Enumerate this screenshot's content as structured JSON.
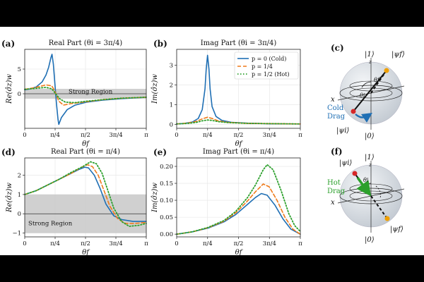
{
  "colors": {
    "cold": "#1f6fb4",
    "quarter": "#ef7a1a",
    "hot": "#2ca02c",
    "region": "#c8c8c8",
    "sphere": "#d6dce2"
  },
  "x_tick_labels": [
    "0",
    "π/4",
    "π/2",
    "3π/4",
    "π"
  ],
  "x_axis_label": "θf",
  "legend": {
    "entries": [
      "p = 0 (Cold)",
      "p = 1/4",
      "p = 1/2 (Hot)"
    ]
  },
  "chart_data": [
    {
      "panel": "(a)",
      "type": "line",
      "title": "Real Part (θi = 3π/4)",
      "ylabel": "Re(σ̂z)w",
      "yticks": [
        "0",
        "5"
      ],
      "ylim": [
        -7,
        9
      ],
      "shaded_region": {
        "label": "Strong Region",
        "y_range": [
          -1,
          1
        ]
      },
      "series": [
        {
          "name": "p = 0 (Cold)",
          "peak": {
            "x": "0.705",
            "y": 8
          },
          "trough": {
            "x": "0.88",
            "y": -6.2
          },
          "x": [
            0,
            0.15,
            0.3,
            0.45,
            0.55,
            0.62,
            0.68,
            0.705,
            0.74,
            0.78,
            0.82,
            0.86,
            0.88,
            0.95,
            1.1,
            1.3,
            1.6,
            2.0,
            2.5,
            3.14
          ],
          "y": [
            0.8,
            1.0,
            1.4,
            2.4,
            3.8,
            5.4,
            7.4,
            8.0,
            6.0,
            2.0,
            -2.0,
            -5.2,
            -6.2,
            -4.8,
            -3.2,
            -2.3,
            -1.7,
            -1.3,
            -1.0,
            -0.7
          ]
        },
        {
          "name": "p = 1/4",
          "x": [
            0,
            0.3,
            0.55,
            0.7,
            0.78,
            0.88,
            1.0,
            1.2,
            1.6,
            2.0,
            2.5,
            3.14
          ],
          "y": [
            0.9,
            1.3,
            1.8,
            1.6,
            0.5,
            -1.5,
            -2.3,
            -2.0,
            -1.6,
            -1.2,
            -0.9,
            -0.7
          ]
        },
        {
          "name": "p = 1/2 (Hot)",
          "x": [
            0,
            0.3,
            0.55,
            0.7,
            0.8,
            0.9,
            1.05,
            1.3,
            1.6,
            2.0,
            2.5,
            3.14
          ],
          "y": [
            0.9,
            1.1,
            1.3,
            1.0,
            0.0,
            -1.0,
            -1.7,
            -1.8,
            -1.5,
            -1.2,
            -0.9,
            -0.7
          ]
        }
      ]
    },
    {
      "panel": "(b)",
      "type": "line",
      "title": "Imag Part (θi = 3π/4)",
      "ylabel": "Im(σ̂z)w",
      "yticks": [
        "0",
        "1",
        "2",
        "3"
      ],
      "ylim": [
        -0.2,
        3.8
      ],
      "series": [
        {
          "name": "p = 0 (Cold)",
          "x": [
            0,
            0.2,
            0.4,
            0.55,
            0.65,
            0.72,
            0.75,
            0.785,
            0.82,
            0.85,
            0.9,
            1.0,
            1.15,
            1.4,
            1.8,
            2.4,
            3.14
          ],
          "y": [
            0.02,
            0.05,
            0.12,
            0.3,
            0.75,
            1.8,
            2.8,
            3.5,
            2.8,
            1.8,
            0.9,
            0.4,
            0.2,
            0.1,
            0.06,
            0.03,
            0.02
          ]
        },
        {
          "name": "p = 1/4",
          "x": [
            0,
            0.3,
            0.5,
            0.65,
            0.785,
            0.9,
            1.05,
            1.3,
            1.8,
            3.14
          ],
          "y": [
            0.02,
            0.07,
            0.15,
            0.28,
            0.36,
            0.3,
            0.18,
            0.1,
            0.05,
            0.02
          ]
        },
        {
          "name": "p = 1/2 (Hot)",
          "x": [
            0,
            0.3,
            0.5,
            0.65,
            0.785,
            0.9,
            1.05,
            1.3,
            1.8,
            3.14
          ],
          "y": [
            0.02,
            0.05,
            0.1,
            0.18,
            0.22,
            0.2,
            0.14,
            0.09,
            0.05,
            0.02
          ]
        }
      ]
    },
    {
      "panel": "(d)",
      "type": "line",
      "title": "Real Part (θi = π/4)",
      "ylabel": "Re(σ̂z)w",
      "yticks": [
        "−1",
        "0",
        "1",
        "2"
      ],
      "ylim": [
        -1.2,
        2.9
      ],
      "shaded_region": {
        "label": "Strong Region",
        "y_range": [
          -1,
          1
        ]
      },
      "series": [
        {
          "name": "p = 0 (Cold)",
          "x": [
            0,
            0.3,
            0.6,
            0.9,
            1.2,
            1.4,
            1.55,
            1.65,
            1.8,
            1.95,
            2.1,
            2.3,
            2.5,
            2.8,
            3.14
          ],
          "y": [
            1.0,
            1.2,
            1.5,
            1.8,
            2.1,
            2.3,
            2.42,
            2.38,
            2.0,
            1.3,
            0.5,
            -0.1,
            -0.3,
            -0.4,
            -0.4
          ]
        },
        {
          "name": "p = 1/4",
          "x": [
            0,
            0.3,
            0.6,
            0.9,
            1.2,
            1.45,
            1.62,
            1.75,
            1.9,
            2.05,
            2.2,
            2.4,
            2.6,
            2.85,
            3.14
          ],
          "y": [
            1.0,
            1.2,
            1.5,
            1.8,
            2.1,
            2.4,
            2.55,
            2.45,
            2.0,
            1.2,
            0.4,
            -0.25,
            -0.5,
            -0.5,
            -0.45
          ]
        },
        {
          "name": "p = 1/2 (Hot)",
          "x": [
            0,
            0.3,
            0.6,
            0.9,
            1.2,
            1.5,
            1.7,
            1.85,
            2.0,
            2.15,
            2.3,
            2.5,
            2.7,
            2.95,
            3.14
          ],
          "y": [
            1.0,
            1.2,
            1.5,
            1.8,
            2.15,
            2.45,
            2.7,
            2.6,
            2.1,
            1.2,
            0.3,
            -0.4,
            -0.65,
            -0.6,
            -0.5
          ]
        }
      ]
    },
    {
      "panel": "(e)",
      "type": "line",
      "title": "Imag Part (θi = π/4)",
      "ylabel": "Im(σ̂z)w",
      "yticks": [
        "0.00",
        "0.05",
        "0.10",
        "0.15",
        "0.20"
      ],
      "ylim": [
        -0.008,
        0.225
      ],
      "series": [
        {
          "name": "p = 0 (Cold)",
          "x": [
            0,
            0.4,
            0.8,
            1.2,
            1.5,
            1.8,
            2.0,
            2.15,
            2.3,
            2.5,
            2.7,
            2.9,
            3.14
          ],
          "y": [
            0.0,
            0.007,
            0.018,
            0.036,
            0.058,
            0.088,
            0.108,
            0.12,
            0.115,
            0.085,
            0.045,
            0.015,
            0.0
          ]
        },
        {
          "name": "p = 1/4",
          "x": [
            0,
            0.4,
            0.8,
            1.2,
            1.5,
            1.8,
            2.0,
            2.2,
            2.35,
            2.55,
            2.75,
            2.95,
            3.14
          ],
          "y": [
            0.0,
            0.007,
            0.019,
            0.038,
            0.063,
            0.098,
            0.125,
            0.148,
            0.14,
            0.1,
            0.05,
            0.015,
            0.0
          ]
        },
        {
          "name": "p = 1/2 (Hot)",
          "x": [
            0,
            0.4,
            0.8,
            1.2,
            1.5,
            1.8,
            2.0,
            2.2,
            2.3,
            2.45,
            2.65,
            2.85,
            3.0,
            3.14
          ],
          "y": [
            0.0,
            0.007,
            0.02,
            0.04,
            0.067,
            0.108,
            0.145,
            0.19,
            0.205,
            0.19,
            0.13,
            0.06,
            0.025,
            0.008
          ]
        }
      ]
    }
  ],
  "bloch_c": {
    "label": "(c)",
    "ket_top": "|1⟩",
    "ket_bottom": "|0⟩",
    "ket_final": "|ψf⟩",
    "ket_initial": "|ψi⟩",
    "axis_x": "x",
    "axis_z": "z",
    "theta_label": "θi",
    "theta_label_2": "θf",
    "drag_label": [
      "Cold",
      "Drag"
    ]
  },
  "bloch_f": {
    "label": "(f)",
    "ket_top": "|1⟩",
    "ket_bottom": "|0⟩",
    "ket_initial": "|ψi⟩",
    "ket_final": "|ψf⟩",
    "axis_x": "x",
    "axis_z": "z",
    "theta_label": "θi",
    "drag_label": [
      "Hot",
      "Drag"
    ]
  }
}
